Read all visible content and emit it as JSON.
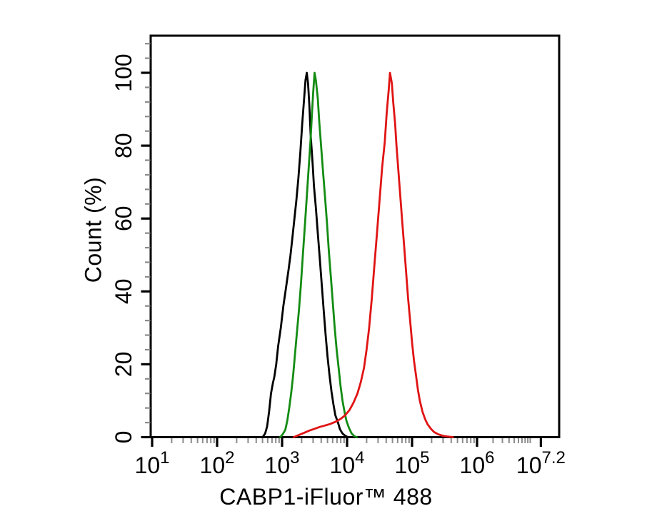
{
  "figure": {
    "background_color": "#ffffff"
  },
  "chart_data": {
    "type": "line",
    "variant": "flow-cytometry-histogram-overlay",
    "title": "",
    "xlabel": "CABP1-iFluor™ 488",
    "ylabel": "Count (%)",
    "x_scale": "log10",
    "x_axis_range_log": [
      1,
      7.2
    ],
    "x_major_ticks": [
      {
        "base": "10",
        "exp": "1",
        "log": 1
      },
      {
        "base": "10",
        "exp": "2",
        "log": 2
      },
      {
        "base": "10",
        "exp": "3",
        "log": 3
      },
      {
        "base": "10",
        "exp": "4",
        "log": 4
      },
      {
        "base": "10",
        "exp": "5",
        "log": 5
      },
      {
        "base": "10",
        "exp": "6",
        "log": 6
      },
      {
        "base": "10",
        "exp": "7.2",
        "log": 7.2
      }
    ],
    "y_major_ticks": [
      0,
      20,
      40,
      60,
      80,
      100
    ],
    "y_minor_step": 4,
    "ylim": [
      0,
      110
    ],
    "grid": false,
    "legend": null,
    "axis_color": "#000000",
    "minor_tick_color": "#8c8c8c",
    "series": [
      {
        "name": "series-black",
        "color": "#000000",
        "peak_x": 2370,
        "peak_y_percent": 100,
        "points": [
          [
            2.7,
            0
          ],
          [
            2.74,
            1
          ],
          [
            2.77,
            3
          ],
          [
            2.8,
            7
          ],
          [
            2.83,
            12
          ],
          [
            2.86,
            15
          ],
          [
            2.88,
            16.5
          ],
          [
            2.91,
            20
          ],
          [
            2.94,
            25
          ],
          [
            2.98,
            30
          ],
          [
            3.02,
            36
          ],
          [
            3.06,
            41
          ],
          [
            3.1,
            46
          ],
          [
            3.13,
            50
          ],
          [
            3.16,
            55
          ],
          [
            3.19,
            60
          ],
          [
            3.22,
            65
          ],
          [
            3.25,
            71
          ],
          [
            3.28,
            78
          ],
          [
            3.31,
            86
          ],
          [
            3.34,
            93
          ],
          [
            3.36,
            98
          ],
          [
            3.38,
            100
          ],
          [
            3.4,
            97
          ],
          [
            3.42,
            91
          ],
          [
            3.44,
            83
          ],
          [
            3.47,
            75
          ],
          [
            3.49,
            69
          ],
          [
            3.52,
            63
          ],
          [
            3.55,
            56
          ],
          [
            3.58,
            49
          ],
          [
            3.61,
            42
          ],
          [
            3.64,
            35
          ],
          [
            3.67,
            28
          ],
          [
            3.7,
            22
          ],
          [
            3.73,
            17
          ],
          [
            3.76,
            12.5
          ],
          [
            3.79,
            9
          ],
          [
            3.82,
            6
          ],
          [
            3.86,
            4
          ],
          [
            3.89,
            2.2
          ],
          [
            3.93,
            1
          ],
          [
            3.97,
            0.4
          ],
          [
            4.01,
            0
          ]
        ]
      },
      {
        "name": "series-green",
        "color": "#138c13",
        "peak_x": 3160,
        "peak_y_percent": 100,
        "points": [
          [
            2.97,
            0
          ],
          [
            3.01,
            0.8
          ],
          [
            3.05,
            2
          ],
          [
            3.08,
            4.5
          ],
          [
            3.11,
            8
          ],
          [
            3.14,
            12
          ],
          [
            3.17,
            17
          ],
          [
            3.2,
            23
          ],
          [
            3.23,
            29
          ],
          [
            3.26,
            35
          ],
          [
            3.29,
            42
          ],
          [
            3.32,
            50
          ],
          [
            3.35,
            58
          ],
          [
            3.38,
            66
          ],
          [
            3.41,
            74
          ],
          [
            3.44,
            82
          ],
          [
            3.46,
            89
          ],
          [
            3.48,
            95
          ],
          [
            3.5,
            100
          ],
          [
            3.52,
            98
          ],
          [
            3.55,
            93
          ],
          [
            3.57,
            87
          ],
          [
            3.6,
            80
          ],
          [
            3.63,
            73
          ],
          [
            3.66,
            66
          ],
          [
            3.69,
            59
          ],
          [
            3.72,
            51
          ],
          [
            3.75,
            44
          ],
          [
            3.78,
            37
          ],
          [
            3.81,
            30
          ],
          [
            3.84,
            24
          ],
          [
            3.87,
            19
          ],
          [
            3.9,
            14
          ],
          [
            3.93,
            10
          ],
          [
            3.96,
            7
          ],
          [
            3.99,
            4.5
          ],
          [
            4.03,
            2.5
          ],
          [
            4.07,
            1
          ],
          [
            4.11,
            0.3
          ],
          [
            4.15,
            0
          ]
        ]
      },
      {
        "name": "series-red",
        "color": "#e01414",
        "peak_x": 45700,
        "peak_y_percent": 100,
        "points": [
          [
            3.18,
            0
          ],
          [
            3.26,
            0.6
          ],
          [
            3.34,
            1.2
          ],
          [
            3.42,
            1.8
          ],
          [
            3.5,
            2.3
          ],
          [
            3.58,
            2.8
          ],
          [
            3.66,
            3.2
          ],
          [
            3.74,
            3.6
          ],
          [
            3.82,
            4.2
          ],
          [
            3.9,
            5
          ],
          [
            3.97,
            6
          ],
          [
            4.04,
            7.5
          ],
          [
            4.1,
            9.5
          ],
          [
            4.16,
            12
          ],
          [
            4.21,
            15
          ],
          [
            4.26,
            19
          ],
          [
            4.3,
            24
          ],
          [
            4.34,
            30
          ],
          [
            4.38,
            38
          ],
          [
            4.42,
            47
          ],
          [
            4.46,
            56
          ],
          [
            4.5,
            65
          ],
          [
            4.54,
            74
          ],
          [
            4.58,
            81
          ],
          [
            4.61,
            89
          ],
          [
            4.64,
            95
          ],
          [
            4.66,
            100
          ],
          [
            4.69,
            97
          ],
          [
            4.71,
            92
          ],
          [
            4.74,
            86
          ],
          [
            4.76,
            80
          ],
          [
            4.79,
            73
          ],
          [
            4.82,
            66
          ],
          [
            4.85,
            59
          ],
          [
            4.88,
            52
          ],
          [
            4.91,
            45
          ],
          [
            4.94,
            38
          ],
          [
            4.97,
            32
          ],
          [
            5.0,
            26
          ],
          [
            5.03,
            21
          ],
          [
            5.06,
            17
          ],
          [
            5.09,
            13
          ],
          [
            5.12,
            10
          ],
          [
            5.16,
            7
          ],
          [
            5.2,
            5
          ],
          [
            5.24,
            3.5
          ],
          [
            5.29,
            2.3
          ],
          [
            5.34,
            1.4
          ],
          [
            5.4,
            0.8
          ],
          [
            5.47,
            0.4
          ],
          [
            5.55,
            0.15
          ],
          [
            5.63,
            0
          ]
        ]
      }
    ]
  }
}
